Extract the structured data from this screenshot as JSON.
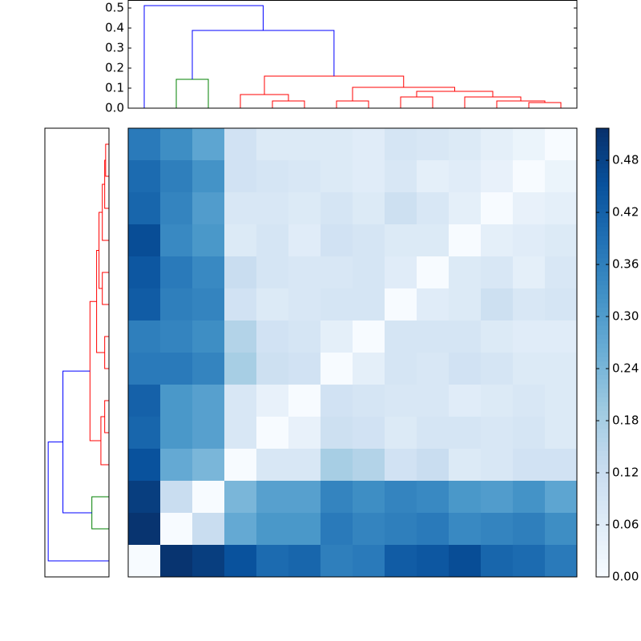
{
  "chart_data": {
    "type": "heatmap",
    "colormap": "Blues",
    "zlim": [
      0,
      0.517
    ],
    "colorbar_ticks": [
      {
        "value": 0,
        "label": "0.00"
      },
      0.06,
      0.12,
      0.18,
      0.24,
      {
        "value": 0.3,
        "label": "0.30"
      },
      0.36,
      0.42,
      0.48
    ],
    "values": [
      [
        0.37,
        0.33,
        0.28,
        0.1,
        0.07,
        0.07,
        0.07,
        0.06,
        0.09,
        0.08,
        0.07,
        0.05,
        0.03,
        0
      ],
      [
        0.4,
        0.36,
        0.32,
        0.1,
        0.09,
        0.08,
        0.07,
        0.06,
        0.08,
        0.05,
        0.06,
        0.04,
        0,
        0.03
      ],
      [
        0.41,
        0.35,
        0.3,
        0.08,
        0.08,
        0.07,
        0.09,
        0.07,
        0.11,
        0.08,
        0.05,
        0,
        0.04,
        0.05
      ],
      [
        0.46,
        0.34,
        0.31,
        0.07,
        0.09,
        0.06,
        0.1,
        0.09,
        0.07,
        0.07,
        0,
        0.05,
        0.06,
        0.07
      ],
      [
        0.44,
        0.37,
        0.34,
        0.12,
        0.09,
        0.08,
        0.08,
        0.09,
        0.06,
        0,
        0.07,
        0.08,
        0.05,
        0.08
      ],
      [
        0.43,
        0.36,
        0.35,
        0.1,
        0.07,
        0.08,
        0.09,
        0.09,
        0,
        0.06,
        0.07,
        0.11,
        0.08,
        0.09
      ],
      [
        0.36,
        0.35,
        0.33,
        0.16,
        0.1,
        0.09,
        0.05,
        0,
        0.09,
        0.09,
        0.09,
        0.07,
        0.06,
        0.06
      ],
      [
        0.37,
        0.37,
        0.35,
        0.18,
        0.11,
        0.1,
        0,
        0.05,
        0.09,
        0.08,
        0.1,
        0.09,
        0.07,
        0.07
      ],
      [
        0.42,
        0.31,
        0.29,
        0.08,
        0.04,
        0,
        0.1,
        0.09,
        0.08,
        0.08,
        0.06,
        0.07,
        0.08,
        0.07
      ],
      [
        0.41,
        0.31,
        0.29,
        0.08,
        0,
        0.04,
        0.11,
        0.1,
        0.07,
        0.09,
        0.09,
        0.08,
        0.09,
        0.07
      ],
      [
        0.45,
        0.27,
        0.24,
        0,
        0.08,
        0.08,
        0.18,
        0.16,
        0.1,
        0.12,
        0.07,
        0.08,
        0.1,
        0.1
      ],
      [
        0.49,
        0.12,
        0,
        0.24,
        0.29,
        0.29,
        0.35,
        0.33,
        0.35,
        0.34,
        0.31,
        0.3,
        0.32,
        0.28
      ],
      [
        0.51,
        0,
        0.12,
        0.27,
        0.31,
        0.31,
        0.37,
        0.35,
        0.36,
        0.37,
        0.34,
        0.35,
        0.36,
        0.33
      ],
      [
        0,
        0.51,
        0.49,
        0.45,
        0.4,
        0.41,
        0.36,
        0.37,
        0.43,
        0.44,
        0.46,
        0.41,
        0.4,
        0.37
      ]
    ],
    "dendrogram": {
      "ylim": [
        0,
        0.54
      ],
      "yticks": [
        {
          "value": 0,
          "label": "0.0"
        },
        0.1,
        0.2,
        0.3,
        0.4,
        0.5
      ],
      "links": [
        {
          "left": 12,
          "right": 13,
          "height": 0.028,
          "left_base": 0,
          "right_base": 0,
          "color": "#ff0000"
        },
        {
          "left": 11,
          "right": 12.5,
          "height": 0.036,
          "left_base": 0,
          "right_base": 0.028,
          "color": "#ff0000"
        },
        {
          "left": 10,
          "right": 11.75,
          "height": 0.056,
          "left_base": 0,
          "right_base": 0.036,
          "color": "#ff0000"
        },
        {
          "left": 8,
          "right": 9,
          "height": 0.056,
          "left_base": 0,
          "right_base": 0,
          "color": "#ff0000"
        },
        {
          "left": 8.5,
          "right": 10.875,
          "height": 0.084,
          "left_base": 0.056,
          "right_base": 0.056,
          "color": "#ff0000"
        },
        {
          "left": 6,
          "right": 7,
          "height": 0.036,
          "left_base": 0,
          "right_base": 0,
          "color": "#ff0000"
        },
        {
          "left": 6.5,
          "right": 9.6875,
          "height": 0.104,
          "left_base": 0.036,
          "right_base": 0.084,
          "color": "#ff0000"
        },
        {
          "left": 4,
          "right": 5,
          "height": 0.036,
          "left_base": 0,
          "right_base": 0,
          "color": "#ff0000"
        },
        {
          "left": 3,
          "right": 4.5,
          "height": 0.068,
          "left_base": 0,
          "right_base": 0.036,
          "color": "#ff0000"
        },
        {
          "left": 3.75,
          "right": 8.09375,
          "height": 0.16,
          "left_base": 0.068,
          "right_base": 0.104,
          "color": "#ff0000"
        },
        {
          "left": 1,
          "right": 2,
          "height": 0.144,
          "left_base": 0,
          "right_base": 0,
          "color": "#008000"
        },
        {
          "left": 1.5,
          "right": 5.921875,
          "height": 0.388,
          "left_base": 0.144,
          "right_base": 0.16,
          "color": "#0000ff"
        },
        {
          "left": 0,
          "right": 3.7109375,
          "height": 0.512,
          "left_base": 0,
          "right_base": 0.388,
          "color": "#0000ff"
        }
      ]
    }
  }
}
